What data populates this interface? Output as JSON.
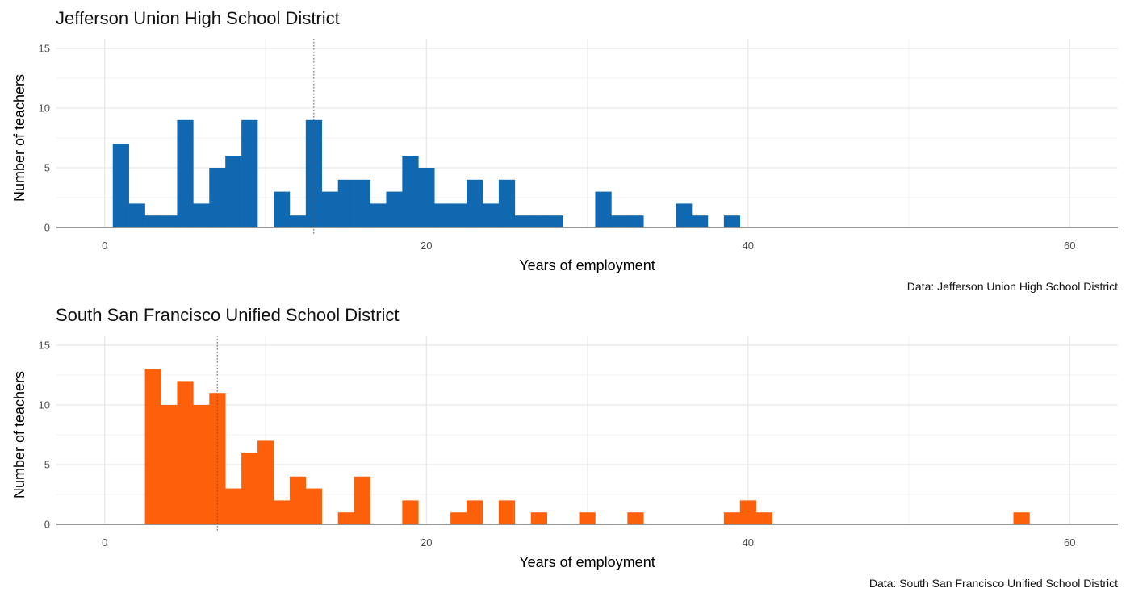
{
  "chart_data": [
    {
      "type": "bar",
      "title": "Jefferson Union High School District",
      "caption": "Data: Jefferson Union High School District",
      "xlabel": "Years of employment",
      "ylabel": "Number of teachers",
      "color": "#1068B0",
      "xlim": [
        -3,
        63
      ],
      "ylim": [
        0,
        15
      ],
      "x_ticks": [
        0,
        20,
        40,
        60
      ],
      "y_ticks": [
        0,
        5,
        10,
        15
      ],
      "bin_width": 1,
      "bin_start": 0.5,
      "values": [
        7,
        2,
        1,
        1,
        9,
        2,
        5,
        6,
        9,
        0,
        3,
        1,
        9,
        3,
        4,
        4,
        2,
        3,
        6,
        5,
        2,
        2,
        4,
        2,
        4,
        1,
        1,
        1,
        0,
        0,
        3,
        1,
        1,
        0,
        0,
        2,
        1,
        0,
        1
      ],
      "median_line": 13,
      "grid": true
    },
    {
      "type": "bar",
      "title": "South San Francisco Unified School District",
      "caption": "Data: South San Francisco Unified School District",
      "xlabel": "Years of employment",
      "ylabel": "Number of teachers",
      "color": "#FC600A",
      "xlim": [
        -3,
        63
      ],
      "ylim": [
        0,
        15
      ],
      "x_ticks": [
        0,
        20,
        40,
        60
      ],
      "y_ticks": [
        0,
        5,
        10,
        15
      ],
      "bin_width": 1,
      "bin_start": 2.5,
      "values": [
        13,
        10,
        12,
        10,
        11,
        3,
        6,
        7,
        2,
        4,
        3,
        0,
        1,
        4,
        0,
        0,
        2,
        0,
        0,
        1,
        2,
        0,
        2,
        0,
        1,
        0,
        0,
        1,
        0,
        0,
        1,
        0,
        0,
        0,
        0,
        0,
        1,
        2,
        1,
        0,
        0,
        0,
        0,
        0,
        0,
        0,
        0,
        0,
        0,
        0,
        0,
        0,
        0,
        0,
        1
      ],
      "median_line": 7,
      "grid": true
    }
  ]
}
